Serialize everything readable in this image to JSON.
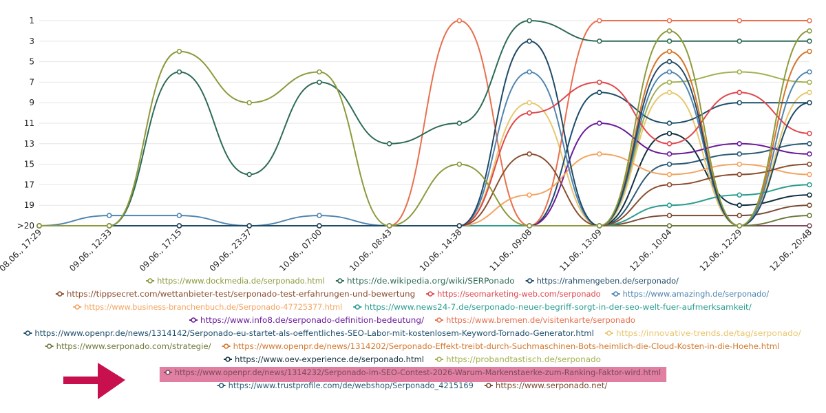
{
  "chart_data": {
    "type": "line",
    "title": "",
    "xlabel": "",
    "ylabel": "",
    "y_axis": {
      "reversed": true,
      "range": [
        1,
        21
      ],
      "tick_values": [
        1,
        3,
        5,
        7,
        9,
        11,
        13,
        15,
        17,
        19,
        21
      ],
      "tick_labels": [
        "1",
        "3",
        "5",
        "7",
        "9",
        "11",
        "13",
        "15",
        "17",
        "19",
        ">20"
      ]
    },
    "categories": [
      "08.06., 17:29",
      "09.06., 12:33",
      "09.06., 17:15",
      "09.06., 23:37",
      "10.06., 07:00",
      "10.06., 08:43",
      "10.06., 14:38",
      "11.06., 09:08",
      "11.06., 13:09",
      "12.06., 10:04",
      "12.06., 12:29",
      "12.06., 20:48"
    ],
    "grid": {
      "horizontal": true,
      "vertical": false
    },
    "legend_position": "bottom",
    "highlighted_series": "https://www.openpr.de/news/1314232/Serponado-im-SEO-Contest-2026-Warum-Markenstaerke-zum-Ranking-Faktor-wird.html",
    "series": [
      {
        "name": "https://www.dockmedia.de/serponado.html",
        "color": "#8c9a3c",
        "values": [
          21,
          21,
          4,
          9,
          6,
          21,
          15,
          21,
          21,
          2,
          21,
          2
        ]
      },
      {
        "name": "https://de.wikipedia.org/wiki/SERPonado",
        "color": "#2e6b57",
        "values": [
          21,
          21,
          6,
          16,
          7,
          13,
          11,
          1,
          3,
          3,
          3,
          3
        ]
      },
      {
        "name": "https://rahmengeben.de/serponado/",
        "color": "#1f4a66",
        "values": [
          21,
          21,
          21,
          21,
          21,
          21,
          21,
          3,
          21,
          5,
          21,
          9
        ]
      },
      {
        "name": "https://tippsecret.com/wettanbieter-test/serponado-test-erfahrungen-und-bewertung",
        "color": "#8b4d2e",
        "values": [
          21,
          21,
          21,
          21,
          21,
          21,
          21,
          14,
          21,
          17,
          16,
          15
        ]
      },
      {
        "name": "https://seomarketing-web.com/serponado",
        "color": "#e0474c",
        "values": [
          21,
          21,
          21,
          21,
          21,
          21,
          21,
          10,
          7,
          13,
          8,
          12
        ]
      },
      {
        "name": "https://www.amazingh.de/serponado/",
        "color": "#4f85b0",
        "values": [
          21,
          20,
          20,
          21,
          20,
          21,
          21,
          6,
          21,
          6,
          21,
          6
        ]
      },
      {
        "name": "https://www.business-branchenbuch.de/Serponado-47725377.html",
        "color": "#f4a460",
        "values": [
          21,
          21,
          21,
          21,
          21,
          21,
          21,
          18,
          14,
          16,
          15,
          16
        ]
      },
      {
        "name": "https://www.news24-7.de/serponado-neuer-begriff-sorgt-in-der-seo-welt-fuer-aufmerksamkeit/",
        "color": "#2a9d8f",
        "values": [
          21,
          21,
          21,
          21,
          21,
          21,
          21,
          21,
          21,
          19,
          18,
          17
        ]
      },
      {
        "name": "https://www.info8.de/serponado-definition-bedeutung/",
        "color": "#6a1b9a",
        "values": [
          21,
          21,
          21,
          21,
          21,
          21,
          21,
          21,
          11,
          14,
          13,
          14
        ]
      },
      {
        "name": "https://www.bremen.de/visitenkarte/serponado",
        "color": "#e8704f",
        "values": [
          21,
          21,
          21,
          21,
          21,
          21,
          1,
          21,
          1,
          1,
          1,
          1
        ]
      },
      {
        "name": "https://www.openpr.de/news/1314142/Serponado-eu-startet-als-oeffentliches-SEO-Labor-mit-kostenlosem-Keyword-Tornado-Generator.html",
        "color": "#1d4e6b",
        "values": [
          21,
          21,
          21,
          21,
          21,
          21,
          21,
          21,
          8,
          11,
          9,
          9
        ]
      },
      {
        "name": "https://innovative-trends.de/tag/serponado/",
        "color": "#e8c76f",
        "values": [
          21,
          21,
          21,
          21,
          21,
          21,
          21,
          9,
          21,
          8,
          21,
          8
        ]
      },
      {
        "name": "https://www.serponado.com/strategie/",
        "color": "#6b7a3a",
        "values": [
          21,
          21,
          21,
          21,
          21,
          21,
          21,
          21,
          21,
          21,
          21,
          20
        ]
      },
      {
        "name": "https://www.openpr.de/news/1314202/Serponado-Effekt-treibt-durch-Suchmaschinen-Bots-heimlich-die-Cloud-Kosten-in-die-Hoehe.html",
        "color": "#d4772c",
        "values": [
          21,
          21,
          21,
          21,
          21,
          21,
          21,
          21,
          21,
          4,
          21,
          4
        ]
      },
      {
        "name": "https://www.oev-experience.de/serponado.html",
        "color": "#0f2f3f",
        "values": [
          21,
          21,
          21,
          21,
          21,
          21,
          21,
          21,
          21,
          12,
          19,
          18
        ]
      },
      {
        "name": "https://probandtastisch.de/serponado",
        "color": "#a3b04f",
        "values": [
          21,
          21,
          21,
          21,
          21,
          21,
          21,
          21,
          21,
          7,
          6,
          7
        ]
      },
      {
        "name": "https://www.openpr.de/news/1314232/Serponado-im-SEO-Contest-2026-Warum-Markenstaerke-zum-Ranking-Faktor-wird.html",
        "color": "#7a4a5a",
        "values": [
          21,
          21,
          21,
          21,
          21,
          21,
          21,
          21,
          21,
          21,
          21,
          21
        ]
      },
      {
        "name": "https://www.trustprofile.com/de/webshop/Serponado_4215169",
        "color": "#2c5a75",
        "values": [
          21,
          21,
          21,
          21,
          21,
          21,
          21,
          21,
          21,
          15,
          14,
          13
        ]
      },
      {
        "name": "https://www.serponado.net/",
        "color": "#7a4a33",
        "values": [
          21,
          21,
          21,
          21,
          21,
          21,
          21,
          21,
          21,
          20,
          20,
          19
        ]
      }
    ]
  },
  "legend_rows": [
    [
      0,
      1,
      2
    ],
    [
      3,
      4,
      5
    ],
    [
      6,
      7
    ],
    [
      8,
      9
    ],
    [
      10,
      11
    ],
    [
      12,
      13
    ],
    [
      14,
      15
    ],
    [
      16
    ],
    [
      17,
      18
    ]
  ]
}
